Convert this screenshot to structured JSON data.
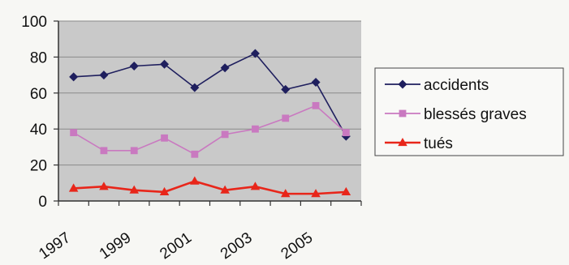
{
  "chart_data": {
    "type": "line",
    "x": [
      "1997",
      "1998",
      "1999",
      "2000",
      "2001",
      "2002",
      "2003",
      "2004",
      "2005",
      "2006"
    ],
    "x_tick_labels": [
      "1997",
      "1999",
      "2001",
      "2003",
      "2005"
    ],
    "y_ticks": [
      "0",
      "20",
      "40",
      "60",
      "80",
      "100"
    ],
    "ylim": [
      0,
      100
    ],
    "grid": true,
    "legend_position": "right",
    "series": [
      {
        "name": "accidents",
        "values": [
          69,
          70,
          75,
          76,
          63,
          74,
          82,
          62,
          66,
          36
        ],
        "color": "#1f1f5e",
        "marker": "diamond"
      },
      {
        "name": "blessés graves",
        "values": [
          38,
          28,
          28,
          35,
          26,
          37,
          40,
          46,
          53,
          38
        ],
        "color": "#c979c0",
        "marker": "square"
      },
      {
        "name": "tués",
        "values": [
          7,
          8,
          6,
          5,
          11,
          6,
          8,
          4,
          4,
          5
        ],
        "color": "#e8261a",
        "marker": "triangle"
      }
    ],
    "plot_background": "#c9c9c9"
  }
}
